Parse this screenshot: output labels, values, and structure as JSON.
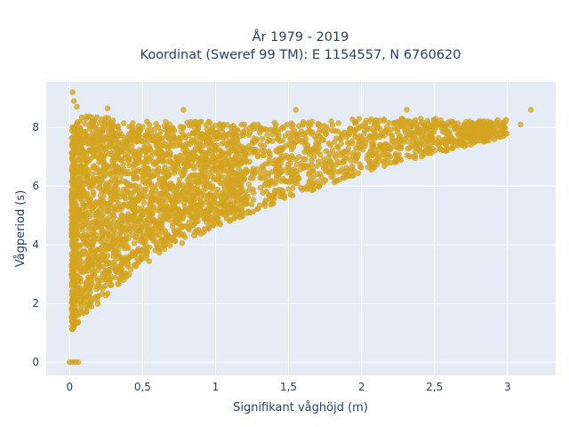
{
  "chart_data": {
    "type": "scatter",
    "title": "År 1979 - 2019",
    "subtitle": "Koordinat (Sweref 99 TM): E 1154557, N 6760620",
    "xlabel": "Signifikant våghöjd (m)",
    "ylabel": "Vågperiod (s)",
    "xlim": [
      -0.16,
      3.33
    ],
    "ylim": [
      -0.45,
      9.55
    ],
    "x_ticks": [
      0,
      0.5,
      1,
      1.5,
      2,
      2.5,
      3
    ],
    "x_tick_labels": [
      "0",
      "0,5",
      "1",
      "1,5",
      "2",
      "2,5",
      "3"
    ],
    "y_ticks": [
      0,
      2,
      4,
      6,
      8
    ],
    "y_tick_labels": [
      "0",
      "2",
      "4",
      "6",
      "8"
    ],
    "grid": true,
    "legend": "none",
    "marker_color": "#d4a420",
    "plot_background": "#e5ecf6",
    "point_density": {
      "note_free_description_omitted": true,
      "envelope_x": [
        0.02,
        0.05,
        0.1,
        0.2,
        0.3,
        0.5,
        0.75,
        1.0,
        1.25,
        1.5,
        1.75,
        2.0,
        2.25,
        2.5,
        2.75,
        3.0
      ],
      "envelope_lower_y": [
        1.1,
        1.3,
        1.6,
        2.0,
        2.5,
        3.3,
        4.0,
        4.6,
        5.1,
        5.6,
        6.0,
        6.4,
        6.8,
        7.1,
        7.4,
        7.7
      ],
      "envelope_upper_y": [
        8.0,
        8.3,
        8.4,
        8.4,
        8.3,
        8.2,
        8.2,
        8.2,
        8.1,
        8.2,
        8.2,
        8.3,
        8.3,
        8.3,
        8.2,
        8.3
      ]
    },
    "outliers": [
      {
        "x": 0.02,
        "y": 9.2
      },
      {
        "x": 0.03,
        "y": 8.9
      },
      {
        "x": 0.05,
        "y": 8.7
      },
      {
        "x": 0.26,
        "y": 8.65
      },
      {
        "x": 0.78,
        "y": 8.6
      },
      {
        "x": 1.55,
        "y": 8.6
      },
      {
        "x": 2.31,
        "y": 8.6
      },
      {
        "x": 3.16,
        "y": 8.6
      },
      {
        "x": 3.09,
        "y": 8.1
      },
      {
        "x": 2.97,
        "y": 8.0
      },
      {
        "x": 0.0,
        "y": 0.0
      },
      {
        "x": 0.02,
        "y": 0.0
      },
      {
        "x": 0.04,
        "y": 0.0
      },
      {
        "x": 0.06,
        "y": 0.0
      }
    ]
  }
}
